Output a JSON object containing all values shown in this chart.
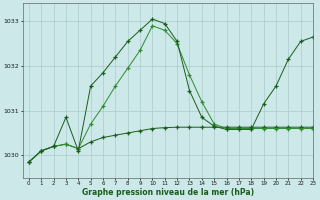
{
  "background_color": "#cce8e8",
  "grid_color": "#b0d8d8",
  "line_color_dark": "#1a5c1a",
  "line_color_medium": "#2e8b2e",
  "xlabel": "Graphe pression niveau de la mer (hPa)",
  "ylabel_ticks": [
    1030,
    1031,
    1032,
    1033
  ],
  "xlim": [
    -0.5,
    23
  ],
  "ylim": [
    1029.5,
    1033.4
  ],
  "xticks": [
    0,
    1,
    2,
    3,
    4,
    5,
    6,
    7,
    8,
    9,
    10,
    11,
    12,
    13,
    14,
    15,
    16,
    17,
    18,
    19,
    20,
    21,
    22,
    23
  ],
  "s1_x": [
    0,
    1,
    2,
    3,
    4,
    5,
    6,
    7,
    8,
    9,
    10,
    11,
    12,
    13,
    14,
    15,
    16,
    17,
    18,
    19,
    20,
    21,
    22,
    23
  ],
  "s1_y": [
    1029.85,
    1030.1,
    1030.2,
    1030.25,
    1030.15,
    1030.3,
    1030.4,
    1030.45,
    1030.5,
    1030.55,
    1030.6,
    1030.62,
    1030.63,
    1030.63,
    1030.63,
    1030.63,
    1030.63,
    1030.63,
    1030.63,
    1030.63,
    1030.63,
    1030.63,
    1030.63,
    1030.63
  ],
  "s2_x": [
    0,
    1,
    2,
    3,
    4,
    5,
    6,
    7,
    8,
    9,
    10,
    11,
    12,
    13,
    14,
    15,
    16,
    17,
    18,
    19,
    20,
    21,
    22,
    23
  ],
  "s2_y": [
    1029.85,
    1030.1,
    1030.2,
    1030.25,
    1030.15,
    1030.7,
    1031.1,
    1031.55,
    1031.95,
    1032.35,
    1032.9,
    1032.8,
    1032.5,
    1031.8,
    1031.2,
    1030.7,
    1030.6,
    1030.6,
    1030.6,
    1030.6,
    1030.6,
    1030.6,
    1030.6,
    1030.6
  ],
  "s3_x": [
    0,
    1,
    2,
    3,
    4,
    5,
    6,
    7,
    8,
    9,
    10,
    11,
    12,
    13,
    14,
    15,
    16,
    17,
    18,
    19,
    20,
    21,
    22,
    23
  ],
  "s3_y": [
    1029.85,
    1030.1,
    1030.2,
    1030.85,
    1030.1,
    1031.55,
    1031.85,
    1032.2,
    1032.55,
    1032.8,
    1033.05,
    1032.95,
    1032.55,
    1031.45,
    1030.85,
    1030.65,
    1030.58,
    1030.58,
    1030.58,
    1031.15,
    1031.55,
    1032.15,
    1032.55,
    1032.65
  ]
}
